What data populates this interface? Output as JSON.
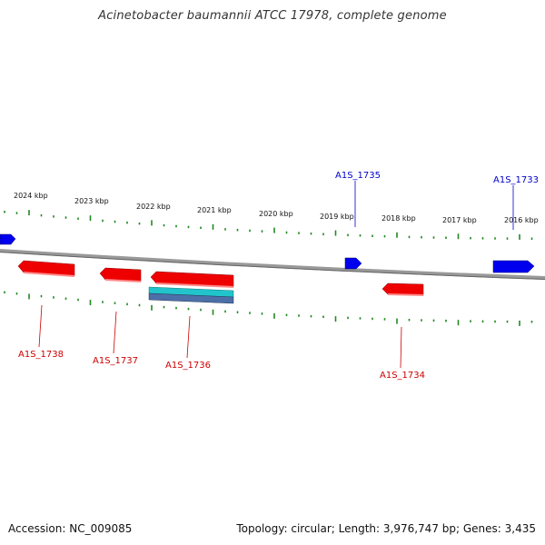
{
  "title": "Acinetobacter baumannii ATCC 17978, complete genome",
  "footer": {
    "accession": "Accession: NC_009085",
    "summary": "Topology: circular; Length: 3,976,747 bp; Genes: 3,435"
  },
  "ticks": [
    "2024 kbp",
    "2023 kbp",
    "2022 kbp",
    "2021 kbp",
    "2020 kbp",
    "2019 kbp",
    "2018 kbp",
    "2017 kbp",
    "2016 kbp"
  ],
  "genes": {
    "forward": [
      {
        "label": "A1S_1735",
        "color": "#0000cc"
      },
      {
        "label": "A1S_1733",
        "color": "#0000cc"
      }
    ],
    "reverse": [
      {
        "label": "A1S_1738",
        "color": "#cc0000"
      },
      {
        "label": "A1S_1737",
        "color": "#cc0000"
      },
      {
        "label": "A1S_1736",
        "color": "#cc0000"
      },
      {
        "label": "A1S_1734",
        "color": "#cc0000"
      }
    ]
  },
  "colors": {
    "forward_gene": "#0000ee",
    "reverse_gene": "#ee0000",
    "rna_feature": "#22bbcc",
    "tick": "#228822",
    "backbone": "#888888"
  }
}
